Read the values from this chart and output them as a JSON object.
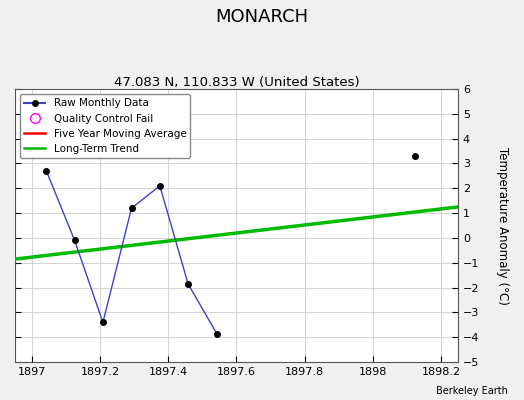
{
  "title": "MONARCH",
  "subtitle": "47.083 N, 110.833 W (United States)",
  "ylabel": "Temperature Anomaly (°C)",
  "xlim": [
    1896.95,
    1898.25
  ],
  "ylim": [
    -5,
    6
  ],
  "yticks": [
    -5,
    -4,
    -3,
    -2,
    -1,
    0,
    1,
    2,
    3,
    4,
    5,
    6
  ],
  "xticks": [
    1897,
    1897.2,
    1897.4,
    1897.6,
    1897.8,
    1898,
    1898.2
  ],
  "fig_bg_color": "#f0f0f0",
  "plot_bg_color": "#ffffff",
  "raw_x": [
    1897.042,
    1897.125,
    1897.208,
    1897.292,
    1897.375,
    1897.458,
    1897.542
  ],
  "raw_y": [
    2.7,
    -0.1,
    -3.4,
    1.2,
    2.1,
    -1.85,
    -3.85
  ],
  "raw_line_color": "#4040cc",
  "raw_markercolor": "#000000",
  "raw_markersize": 4,
  "isolated_x": [
    1898.125
  ],
  "isolated_y": [
    3.3
  ],
  "trend_x": [
    1896.95,
    1898.25
  ],
  "trend_y": [
    -0.85,
    1.25
  ],
  "trend_color": "#00bb00",
  "trend_linewidth": 2.5,
  "mavg_color": "#ff0000",
  "legend_labels": [
    "Raw Monthly Data",
    "Quality Control Fail",
    "Five Year Moving Average",
    "Long-Term Trend"
  ],
  "watermark": "Berkeley Earth",
  "grid_color": "#cccccc",
  "title_fontsize": 13,
  "subtitle_fontsize": 9.5
}
